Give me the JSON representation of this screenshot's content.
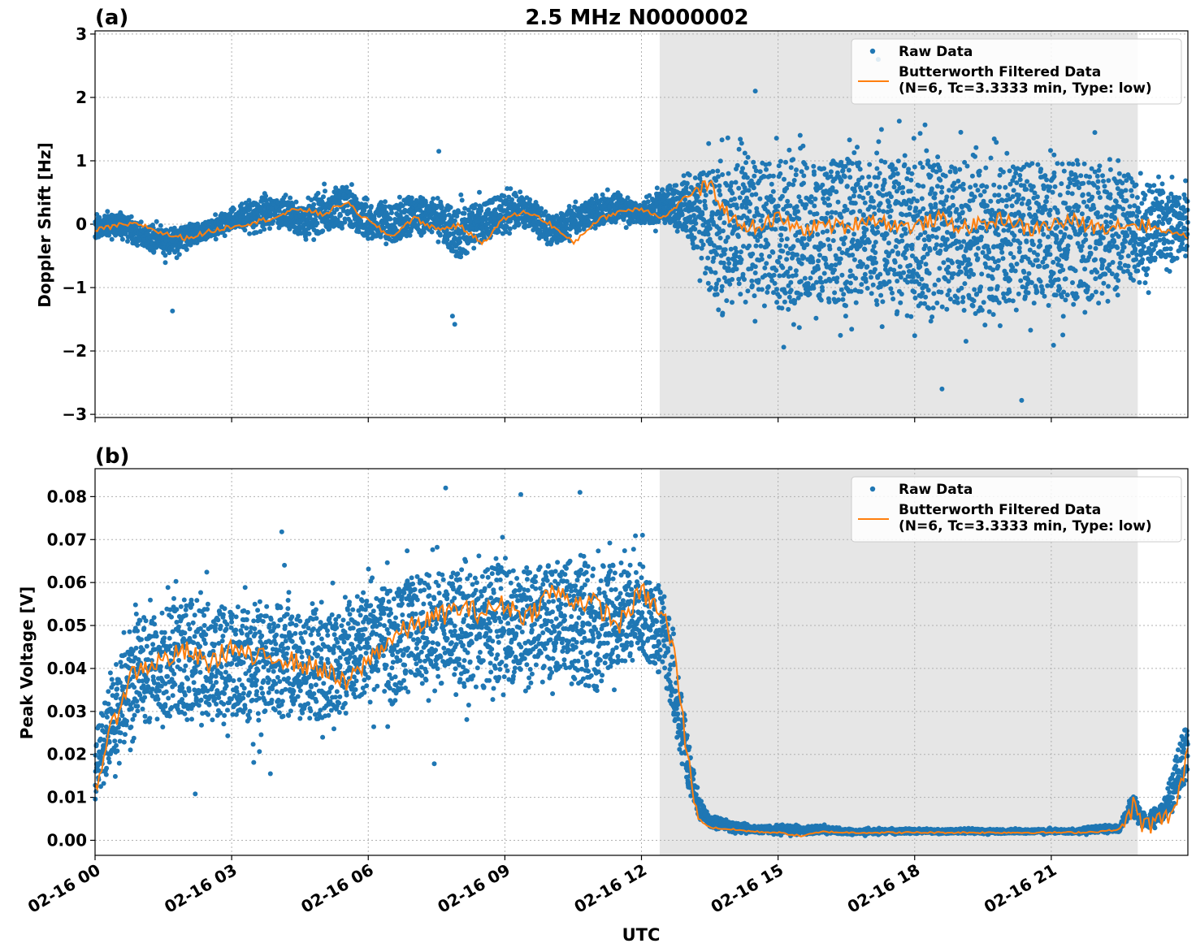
{
  "figure": {
    "title": "2.5 MHz N0000002",
    "xlabel": "UTC"
  },
  "colors": {
    "raw": "#1f77b4",
    "filtered": "#ff7f0e",
    "shade": "#e6e6e6",
    "grid": "#b0b0b0"
  },
  "chart_data": [
    {
      "type": "scatter",
      "panel_label": "(a)",
      "ylabel": "Doppler Shift [Hz]",
      "xlim_hours": [
        0,
        24
      ],
      "ylim": [
        -3.05,
        3.05
      ],
      "grid": true,
      "legend_position": "upper-right",
      "shaded_interval_hours": [
        12.4,
        22.9
      ],
      "x_tick_labels": [
        "02-16 00",
        "02-16 03",
        "02-16 06",
        "02-16 09",
        "02-16 12",
        "02-16 15",
        "02-16 18",
        "02-16 21"
      ],
      "y_ticks": [
        "3",
        "2",
        "1",
        "0",
        "−1",
        "−2",
        "−3"
      ],
      "series": [
        {
          "name": "Raw Data",
          "kind": "scatter",
          "x_hours": [
            0,
            0.5,
            1,
            1.5,
            2,
            2.5,
            3,
            3.5,
            4,
            4.5,
            5,
            5.5,
            6,
            6.5,
            7,
            7.5,
            8,
            8.5,
            9,
            9.5,
            10,
            10.5,
            11,
            11.5,
            12,
            12.5,
            13,
            13.5,
            14,
            14.5,
            15,
            15.5,
            16,
            16.5,
            17,
            17.5,
            18,
            18.5,
            19,
            19.5,
            20,
            20.5,
            21,
            21.5,
            22,
            22.5,
            23,
            23.5,
            24
          ],
          "y_upper": [
            0.25,
            0.3,
            0.15,
            0.1,
            0.1,
            0.15,
            0.35,
            0.55,
            0.6,
            0.45,
            0.7,
            0.85,
            0.5,
            0.55,
            0.7,
            0.55,
            0.55,
            0.6,
            0.7,
            0.6,
            0.35,
            0.45,
            0.6,
            0.7,
            0.4,
            0.8,
            1.2,
            1.6,
            1.8,
            1.9,
            1.9,
            2.0,
            1.9,
            2.0,
            1.9,
            1.9,
            1.9,
            2.0,
            1.9,
            1.9,
            1.9,
            1.9,
            1.9,
            1.9,
            1.8,
            1.6,
            1.3,
            1.0,
            0.8
          ],
          "y_lower": [
            -0.35,
            -0.3,
            -0.45,
            -0.7,
            -0.5,
            -0.3,
            -0.2,
            -0.25,
            -0.15,
            -0.35,
            -0.4,
            -0.25,
            -0.45,
            -0.6,
            -0.35,
            -0.4,
            -0.85,
            -0.55,
            -0.3,
            -0.2,
            -0.55,
            -0.35,
            -0.2,
            -0.15,
            -0.1,
            -0.2,
            -0.5,
            -1.8,
            -2.0,
            -2.1,
            -2.2,
            -2.2,
            -2.1,
            -2.3,
            -2.2,
            -2.2,
            -2.2,
            -2.4,
            -2.3,
            -2.2,
            -2.2,
            -2.3,
            -2.2,
            -2.2,
            -2.0,
            -1.8,
            -1.4,
            -1.1,
            -0.9
          ],
          "outliers": [
            [
              7.55,
              1.15
            ],
            [
              7.85,
              -1.45
            ],
            [
              7.9,
              -1.58
            ],
            [
              1.7,
              -1.37
            ],
            [
              18.6,
              -2.6
            ],
            [
              20.35,
              -2.78
            ],
            [
              17.2,
              2.6
            ],
            [
              14.5,
              2.1
            ]
          ]
        },
        {
          "name": "Butterworth Filtered Data\n(N=6, Tc=3.3333 min, Type: low)",
          "kind": "line",
          "x_hours": [
            0,
            0.5,
            1,
            1.5,
            2,
            2.5,
            3,
            3.5,
            4,
            4.5,
            5,
            5.5,
            6,
            6.5,
            7,
            7.5,
            8,
            8.5,
            9,
            9.5,
            10,
            10.5,
            11,
            11.5,
            12,
            12.5,
            13,
            13.5,
            14,
            14.5,
            15,
            15.5,
            16,
            16.5,
            17,
            17.5,
            18,
            18.5,
            19,
            19.5,
            20,
            20.5,
            21,
            21.5,
            22,
            22.5,
            23,
            23.5,
            24
          ],
          "y": [
            -0.1,
            -0.02,
            0.0,
            -0.15,
            -0.22,
            -0.12,
            -0.03,
            0.03,
            0.12,
            0.25,
            0.15,
            0.35,
            0.05,
            -0.2,
            0.1,
            -0.08,
            -0.02,
            -0.3,
            0.1,
            0.2,
            0.0,
            -0.3,
            0.05,
            0.2,
            0.25,
            0.1,
            0.45,
            0.6,
            0.05,
            -0.05,
            0.1,
            -0.1,
            0.0,
            -0.05,
            0.1,
            0.0,
            -0.05,
            0.1,
            -0.05,
            0.0,
            0.1,
            -0.1,
            0.0,
            0.05,
            -0.05,
            0.0,
            0.0,
            -0.1,
            -0.2
          ]
        }
      ]
    },
    {
      "type": "scatter",
      "panel_label": "(b)",
      "ylabel": "Peak Voltage [V]",
      "xlim_hours": [
        0,
        24
      ],
      "ylim": [
        -0.0035,
        0.0865
      ],
      "grid": true,
      "legend_position": "upper-right",
      "shaded_interval_hours": [
        12.4,
        22.9
      ],
      "x_tick_labels": [
        "02-16 00",
        "02-16 03",
        "02-16 06",
        "02-16 09",
        "02-16 12",
        "02-16 15",
        "02-16 18",
        "02-16 21"
      ],
      "y_ticks": [
        "0.08",
        "0.07",
        "0.06",
        "0.05",
        "0.04",
        "0.03",
        "0.02",
        "0.01",
        "0.00"
      ],
      "series": [
        {
          "name": "Raw Data",
          "kind": "scatter",
          "x_hours": [
            0,
            0.25,
            0.5,
            0.75,
            1,
            1.5,
            2,
            2.5,
            3,
            3.5,
            4,
            4.5,
            5,
            5.5,
            6,
            6.5,
            7,
            7.5,
            8,
            8.5,
            9,
            9.5,
            10,
            10.5,
            11,
            11.5,
            12,
            12.25,
            12.5,
            12.75,
            13,
            13.25,
            13.5,
            14,
            14.5,
            15,
            15.5,
            16,
            16.5,
            17,
            17.5,
            18,
            18.5,
            19,
            19.5,
            20,
            20.5,
            21,
            21.5,
            22,
            22.5,
            22.8,
            23,
            23.25,
            23.5,
            23.75,
            24
          ],
          "y_upper": [
            0.03,
            0.042,
            0.05,
            0.058,
            0.062,
            0.065,
            0.067,
            0.066,
            0.066,
            0.065,
            0.066,
            0.064,
            0.062,
            0.066,
            0.068,
            0.07,
            0.072,
            0.073,
            0.074,
            0.074,
            0.075,
            0.075,
            0.075,
            0.076,
            0.076,
            0.074,
            0.073,
            0.068,
            0.065,
            0.052,
            0.03,
            0.012,
            0.007,
            0.005,
            0.004,
            0.004,
            0.004,
            0.004,
            0.003,
            0.003,
            0.003,
            0.003,
            0.003,
            0.003,
            0.003,
            0.003,
            0.003,
            0.003,
            0.003,
            0.004,
            0.004,
            0.013,
            0.007,
            0.008,
            0.012,
            0.025,
            0.033
          ],
          "y_lower": [
            0.004,
            0.007,
            0.012,
            0.015,
            0.018,
            0.016,
            0.02,
            0.018,
            0.017,
            0.016,
            0.017,
            0.018,
            0.018,
            0.02,
            0.025,
            0.022,
            0.027,
            0.026,
            0.025,
            0.024,
            0.026,
            0.025,
            0.028,
            0.029,
            0.022,
            0.032,
            0.035,
            0.032,
            0.03,
            0.018,
            0.008,
            0.004,
            0.002,
            0.001,
            0.001,
            0.001,
            0.0007,
            0.001,
            0.001,
            0.001,
            0.0012,
            0.0012,
            0.0012,
            0.0012,
            0.0012,
            0.0012,
            0.0012,
            0.0012,
            0.0012,
            0.0012,
            0.0015,
            0.004,
            0.002,
            0.002,
            0.003,
            0.004,
            0.01
          ],
          "outliers": [
            [
              5.55,
              0.0395
            ],
            [
              5.7,
              0.0415
            ],
            [
              7.45,
              0.0178
            ],
            [
              7.7,
              0.082
            ],
            [
              9.35,
              0.0805
            ],
            [
              10.65,
              0.081
            ],
            [
              4.1,
              0.0718
            ],
            [
              2.2,
              0.0108
            ],
            [
              3.85,
              0.0155
            ]
          ]
        },
        {
          "name": "Butterworth Filtered Data\n(N=6, Tc=3.3333 min, Type: low)",
          "kind": "line",
          "x_hours": [
            0,
            0.25,
            0.5,
            0.75,
            1,
            1.5,
            2,
            2.5,
            3,
            3.5,
            4,
            4.5,
            5,
            5.5,
            6,
            6.5,
            7,
            7.5,
            8,
            8.5,
            9,
            9.5,
            10,
            10.5,
            11,
            11.5,
            12,
            12.25,
            12.5,
            12.75,
            13,
            13.25,
            13.5,
            14,
            14.5,
            15,
            15.5,
            16,
            16.5,
            17,
            17.5,
            18,
            18.5,
            19,
            19.5,
            20,
            20.5,
            21,
            21.5,
            22,
            22.5,
            22.8,
            23,
            23.25,
            23.5,
            23.75,
            24
          ],
          "y": [
            0.012,
            0.022,
            0.03,
            0.038,
            0.04,
            0.042,
            0.044,
            0.041,
            0.045,
            0.042,
            0.043,
            0.041,
            0.04,
            0.036,
            0.042,
            0.047,
            0.05,
            0.052,
            0.054,
            0.053,
            0.055,
            0.052,
            0.058,
            0.056,
            0.055,
            0.05,
            0.058,
            0.055,
            0.052,
            0.042,
            0.02,
            0.005,
            0.003,
            0.0025,
            0.002,
            0.0018,
            0.001,
            0.002,
            0.0018,
            0.0018,
            0.0018,
            0.0018,
            0.0018,
            0.0018,
            0.0018,
            0.0018,
            0.0018,
            0.0018,
            0.0018,
            0.002,
            0.0025,
            0.008,
            0.0035,
            0.004,
            0.005,
            0.008,
            0.02
          ]
        }
      ]
    }
  ]
}
